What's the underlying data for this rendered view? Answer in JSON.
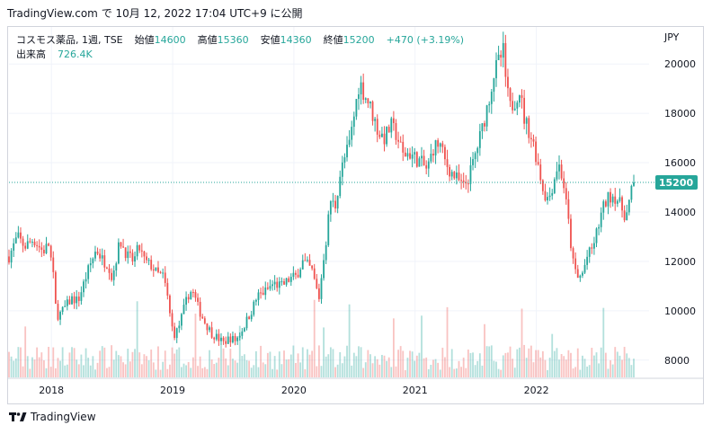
{
  "header": {
    "source": "TradingView.com",
    "published": "で 10月 12, 2022 17:04 UTC+9 に公開"
  },
  "legend": {
    "title": "コスモス薬品, 1週, TSE",
    "open_label": "始値",
    "open": "14600",
    "high_label": "高値",
    "high": "15360",
    "low_label": "安値",
    "low": "14360",
    "close_label": "終値",
    "close": "15200",
    "change": "+470 (+3.19%)",
    "volume_label": "出来高",
    "volume": "726.4K"
  },
  "footer": {
    "brand": "TradingView"
  },
  "colors": {
    "up": "#26a69a",
    "down": "#ef5350",
    "last_price_badge": "#26a69a",
    "grid": "#f0f3fa",
    "axis_text": "#131722"
  },
  "chart_data": {
    "type": "candlestick",
    "symbol": "コスモス薬品",
    "interval": "1週",
    "exchange": "TSE",
    "currency": "JPY",
    "y_ticks": [
      8000,
      10000,
      12000,
      14000,
      16000,
      18000,
      20000
    ],
    "ylim": [
      7300,
      21500
    ],
    "x_ticks": [
      "2018",
      "2019",
      "2020",
      "2021",
      "2022"
    ],
    "x_tick_pos": [
      2018.0,
      2019.0,
      2020.0,
      2021.0,
      2022.0
    ],
    "xlim": [
      2017.65,
      2022.93
    ],
    "last_price": 15200,
    "price_path": [
      [
        2017.65,
        12200
      ],
      [
        2017.72,
        13000
      ],
      [
        2017.78,
        12600
      ],
      [
        2017.85,
        12900
      ],
      [
        2017.93,
        12400
      ],
      [
        2017.98,
        12700
      ],
      [
        2018.02,
        11200
      ],
      [
        2018.04,
        9800
      ],
      [
        2018.08,
        9900
      ],
      [
        2018.12,
        10200
      ],
      [
        2018.17,
        10500
      ],
      [
        2018.22,
        10400
      ],
      [
        2018.3,
        11600
      ],
      [
        2018.37,
        12500
      ],
      [
        2018.43,
        12000
      ],
      [
        2018.47,
        11900
      ],
      [
        2018.5,
        11300
      ],
      [
        2018.55,
        12500
      ],
      [
        2018.57,
        12800
      ],
      [
        2018.63,
        12200
      ],
      [
        2018.68,
        12000
      ],
      [
        2018.72,
        12600
      ],
      [
        2018.77,
        12000
      ],
      [
        2018.83,
        11800
      ],
      [
        2018.87,
        11500
      ],
      [
        2018.92,
        11400
      ],
      [
        2018.95,
        10800
      ],
      [
        2018.99,
        9400
      ],
      [
        2019.02,
        9000
      ],
      [
        2019.06,
        9500
      ],
      [
        2019.1,
        10200
      ],
      [
        2019.14,
        10800
      ],
      [
        2019.17,
        10700
      ],
      [
        2019.22,
        10000
      ],
      [
        2019.27,
        9500
      ],
      [
        2019.32,
        9100
      ],
      [
        2019.37,
        8900
      ],
      [
        2019.42,
        8700
      ],
      [
        2019.47,
        8900
      ],
      [
        2019.52,
        8800
      ],
      [
        2019.57,
        9200
      ],
      [
        2019.6,
        9500
      ],
      [
        2019.65,
        10000
      ],
      [
        2019.7,
        10600
      ],
      [
        2019.77,
        10800
      ],
      [
        2019.83,
        11100
      ],
      [
        2019.9,
        11000
      ],
      [
        2019.97,
        11300
      ],
      [
        2020.02,
        11400
      ],
      [
        2020.07,
        12000
      ],
      [
        2020.12,
        11800
      ],
      [
        2020.15,
        11600
      ],
      [
        2020.18,
        11000
      ],
      [
        2020.21,
        10500
      ],
      [
        2020.24,
        12000
      ],
      [
        2020.27,
        13000
      ],
      [
        2020.3,
        14500
      ],
      [
        2020.34,
        14200
      ],
      [
        2020.38,
        15500
      ],
      [
        2020.42,
        16200
      ],
      [
        2020.46,
        16800
      ],
      [
        2020.5,
        18000
      ],
      [
        2020.54,
        19300
      ],
      [
        2020.58,
        18800
      ],
      [
        2020.62,
        18400
      ],
      [
        2020.66,
        17800
      ],
      [
        2020.7,
        17200
      ],
      [
        2020.75,
        17000
      ],
      [
        2020.8,
        17500
      ],
      [
        2020.85,
        17100
      ],
      [
        2020.9,
        16300
      ],
      [
        2020.95,
        16400
      ],
      [
        2021.0,
        16200
      ],
      [
        2021.05,
        16000
      ],
      [
        2021.1,
        15700
      ],
      [
        2021.15,
        16600
      ],
      [
        2021.2,
        16800
      ],
      [
        2021.25,
        16000
      ],
      [
        2021.3,
        15600
      ],
      [
        2021.35,
        15300
      ],
      [
        2021.4,
        15000
      ],
      [
        2021.45,
        15500
      ],
      [
        2021.5,
        16400
      ],
      [
        2021.55,
        17300
      ],
      [
        2021.6,
        18400
      ],
      [
        2021.65,
        19600
      ],
      [
        2021.7,
        20200
      ],
      [
        2021.73,
        20500
      ],
      [
        2021.75,
        19200
      ],
      [
        2021.78,
        18200
      ],
      [
        2021.82,
        18500
      ],
      [
        2021.86,
        19000
      ],
      [
        2021.9,
        17800
      ],
      [
        2021.94,
        17300
      ],
      [
        2021.98,
        16700
      ],
      [
        2022.02,
        15800
      ],
      [
        2022.06,
        14800
      ],
      [
        2022.1,
        14500
      ],
      [
        2022.14,
        15200
      ],
      [
        2022.18,
        16000
      ],
      [
        2022.22,
        15300
      ],
      [
        2022.26,
        13800
      ],
      [
        2022.3,
        12000
      ],
      [
        2022.34,
        11300
      ],
      [
        2022.38,
        11500
      ],
      [
        2022.42,
        12200
      ],
      [
        2022.46,
        12500
      ],
      [
        2022.5,
        13200
      ],
      [
        2022.54,
        14000
      ],
      [
        2022.58,
        14500
      ],
      [
        2022.62,
        14700
      ],
      [
        2022.66,
        14600
      ],
      [
        2022.7,
        14200
      ],
      [
        2022.74,
        13800
      ],
      [
        2022.78,
        14700
      ],
      [
        2022.8,
        15200
      ]
    ]
  }
}
